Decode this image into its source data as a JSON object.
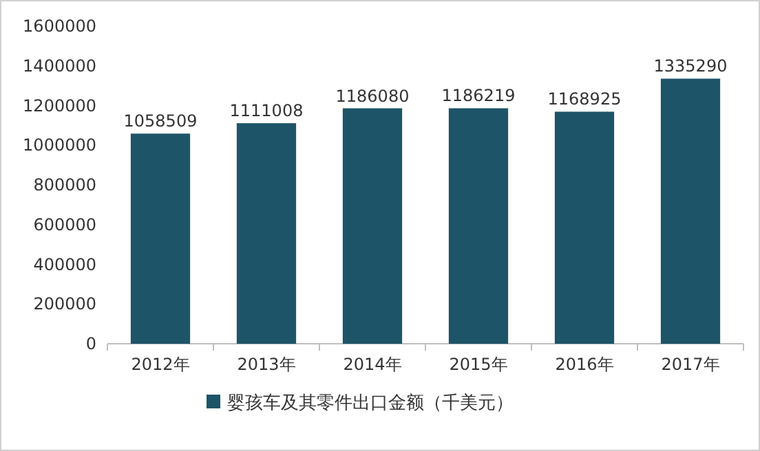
{
  "chart_data": {
    "type": "bar",
    "categories": [
      "2012年",
      "2013年",
      "2014年",
      "2015年",
      "2016年",
      "2017年"
    ],
    "series": [
      {
        "name": "婴孩车及其零件出口金额（千美元）",
        "color": "#1d5468",
        "values": [
          1058509,
          1111008,
          1186080,
          1186219,
          1168925,
          1335290
        ]
      }
    ],
    "ylim": [
      0,
      1600000
    ],
    "yticks": [
      0,
      200000,
      400000,
      600000,
      800000,
      1000000,
      1200000,
      1400000,
      1600000
    ],
    "data_labels": true,
    "legend": "bottom"
  }
}
